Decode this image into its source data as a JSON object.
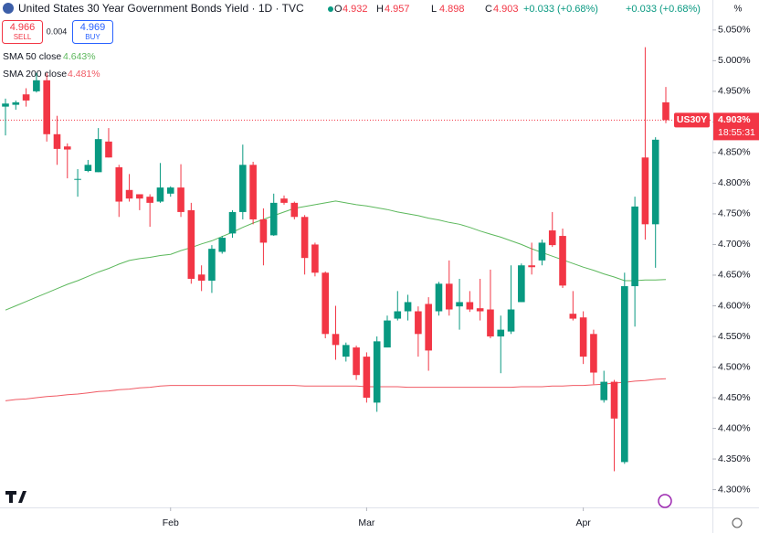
{
  "chart_data": {
    "type": "candlestick",
    "title": "United States 30 Year Government Bonds Yield · 1D · TVC",
    "ohlc_labels": [
      "O",
      "H",
      "L",
      "C"
    ],
    "ohlc_values": [
      4.932,
      4.957,
      4.898,
      4.903
    ],
    "change": "+0.033 (+0.68%)",
    "sell": {
      "label": "SELL",
      "value": 4.966
    },
    "buy": {
      "label": "BUY",
      "value": 4.969
    },
    "spread": 0.004,
    "axis_unit": "%",
    "symbol": "US30Y",
    "last_price": {
      "value": 4.903,
      "label": "4.903%"
    },
    "countdown": "18:55:31",
    "up_color": "#089981",
    "down_color": "#f23645",
    "categories": [
      null,
      null,
      null,
      null,
      null,
      null,
      null,
      null,
      null,
      null,
      null,
      null,
      null,
      null,
      null,
      null,
      "Feb",
      null,
      null,
      null,
      null,
      null,
      null,
      null,
      null,
      null,
      null,
      null,
      null,
      null,
      null,
      null,
      null,
      null,
      null,
      "Mar",
      null,
      null,
      null,
      null,
      null,
      null,
      null,
      null,
      null,
      null,
      null,
      null,
      null,
      null,
      null,
      null,
      null,
      null,
      null,
      null,
      "Apr",
      null,
      null,
      null,
      null,
      null,
      null,
      null,
      null
    ],
    "open": [
      4.925,
      4.928,
      4.945,
      4.95,
      4.968,
      4.88,
      4.86,
      4.806,
      4.82,
      4.818,
      4.868,
      4.826,
      4.789,
      4.782,
      4.778,
      4.77,
      4.783,
      4.793,
      4.756,
      4.651,
      4.641,
      4.688,
      4.718,
      4.753,
      4.83,
      4.741,
      4.715,
      4.775,
      4.768,
      4.745,
      4.7,
      4.654,
      4.554,
      4.517,
      4.532,
      4.517,
      4.442,
      4.532,
      4.579,
      4.591,
      4.591,
      4.603,
      4.591,
      4.636,
      4.599,
      4.606,
      4.596,
      4.594,
      4.55,
      4.558,
      4.606,
      4.666,
      4.674,
      4.723,
      4.714,
      4.587,
      4.581,
      4.554,
      4.446,
      4.476,
      4.345,
      4.632,
      4.842,
      4.733,
      4.932
    ],
    "high": [
      4.938,
      4.935,
      4.955,
      4.98,
      4.98,
      4.91,
      4.865,
      4.823,
      4.838,
      4.89,
      4.89,
      4.83,
      4.815,
      4.782,
      4.782,
      4.833,
      4.795,
      4.831,
      4.768,
      4.666,
      4.699,
      4.714,
      4.756,
      4.863,
      4.835,
      4.759,
      4.783,
      4.78,
      4.77,
      4.748,
      4.703,
      4.656,
      4.6,
      4.54,
      4.535,
      4.524,
      4.55,
      4.584,
      4.624,
      4.618,
      4.599,
      4.614,
      4.639,
      4.674,
      4.644,
      4.624,
      4.644,
      4.659,
      4.584,
      4.666,
      4.669,
      4.703,
      4.708,
      4.753,
      4.726,
      4.624,
      4.591,
      4.561,
      4.494,
      4.479,
      4.654,
      4.778,
      5.022,
      4.875,
      4.957
    ],
    "low": [
      4.878,
      4.92,
      4.925,
      4.948,
      4.868,
      4.83,
      4.808,
      4.778,
      4.818,
      4.818,
      4.842,
      4.745,
      4.77,
      4.756,
      4.729,
      4.768,
      4.778,
      4.745,
      4.636,
      4.624,
      4.621,
      4.685,
      4.711,
      4.741,
      4.733,
      4.666,
      4.714,
      4.765,
      4.741,
      4.651,
      4.648,
      4.547,
      4.512,
      4.509,
      4.479,
      4.442,
      4.427,
      4.532,
      4.576,
      4.576,
      4.517,
      4.494,
      4.584,
      4.584,
      4.561,
      4.59,
      4.576,
      4.547,
      4.49,
      4.554,
      4.606,
      4.651,
      4.666,
      4.696,
      4.629,
      4.576,
      4.505,
      4.472,
      4.442,
      4.33,
      4.342,
      4.566,
      4.708,
      4.662,
      4.898
    ],
    "close": [
      4.93,
      4.932,
      4.935,
      4.968,
      4.88,
      4.856,
      4.855,
      4.807,
      4.83,
      4.872,
      4.842,
      4.77,
      4.775,
      4.775,
      4.768,
      4.793,
      4.793,
      4.753,
      4.644,
      4.641,
      4.693,
      4.711,
      4.753,
      4.83,
      4.741,
      4.703,
      4.768,
      4.768,
      4.745,
      4.678,
      4.654,
      4.554,
      4.536,
      4.536,
      4.487,
      4.45,
      4.542,
      4.576,
      4.591,
      4.606,
      4.554,
      4.527,
      4.636,
      4.594,
      4.606,
      4.594,
      4.591,
      4.55,
      4.561,
      4.594,
      4.666,
      4.663,
      4.703,
      4.699,
      4.633,
      4.579,
      4.517,
      4.491,
      4.476,
      4.416,
      4.632,
      4.762,
      4.733,
      4.871,
      4.903
    ],
    "series": [
      {
        "name": "SMA 50 close",
        "legend_value": {
          "value": 4.643,
          "label": "4.643%"
        },
        "color": "#5cb85c",
        "values": [
          4.593,
          4.6,
          4.607,
          4.614,
          4.621,
          4.628,
          4.635,
          4.641,
          4.648,
          4.655,
          4.661,
          4.668,
          4.674,
          4.677,
          4.679,
          4.682,
          4.684,
          4.69,
          4.695,
          4.701,
          4.706,
          4.713,
          4.72,
          4.728,
          4.735,
          4.741,
          4.747,
          4.753,
          4.759,
          4.762,
          4.765,
          4.768,
          4.771,
          4.768,
          4.765,
          4.763,
          4.76,
          4.757,
          4.753,
          4.75,
          4.747,
          4.743,
          4.74,
          4.736,
          4.733,
          4.728,
          4.722,
          4.717,
          4.712,
          4.706,
          4.7,
          4.693,
          4.687,
          4.681,
          4.675,
          4.669,
          4.663,
          4.658,
          4.652,
          4.647,
          4.641,
          4.641,
          4.642,
          4.642,
          4.643
        ]
      },
      {
        "name": "SMA 200 close",
        "legend_value": {
          "value": 4.481,
          "label": "4.481%"
        },
        "color": "#f05a64",
        "values": [
          4.445,
          4.447,
          4.448,
          4.45,
          4.452,
          4.453,
          4.455,
          4.456,
          4.458,
          4.46,
          4.461,
          4.463,
          4.464,
          4.466,
          4.467,
          4.469,
          4.47,
          4.47,
          4.47,
          4.47,
          4.47,
          4.47,
          4.47,
          4.47,
          4.47,
          4.47,
          4.47,
          4.47,
          4.47,
          4.469,
          4.469,
          4.469,
          4.469,
          4.469,
          4.469,
          4.468,
          4.468,
          4.468,
          4.468,
          4.467,
          4.467,
          4.467,
          4.467,
          4.467,
          4.467,
          4.467,
          4.467,
          4.467,
          4.467,
          4.467,
          4.468,
          4.468,
          4.468,
          4.469,
          4.469,
          4.47,
          4.47,
          4.471,
          4.472,
          4.474,
          4.475,
          4.477,
          4.478,
          4.48,
          4.481
        ]
      }
    ],
    "ylim": [
      4.271,
      5.099
    ],
    "yticks": [
      {
        "value": 5.05,
        "label": "5.050%"
      },
      {
        "value": 5.0,
        "label": "5.000%"
      },
      {
        "value": 4.95,
        "label": "4.950%"
      },
      {
        "value": 4.9,
        "label": "4.900%"
      },
      {
        "value": 4.85,
        "label": "4.850%"
      },
      {
        "value": 4.8,
        "label": "4.800%"
      },
      {
        "value": 4.75,
        "label": "4.750%"
      },
      {
        "value": 4.7,
        "label": "4.700%"
      },
      {
        "value": 4.65,
        "label": "4.650%"
      },
      {
        "value": 4.6,
        "label": "4.600%"
      },
      {
        "value": 4.55,
        "label": "4.550%"
      },
      {
        "value": 4.5,
        "label": "4.500%"
      },
      {
        "value": 4.45,
        "label": "4.450%"
      },
      {
        "value": 4.4,
        "label": "4.400%"
      },
      {
        "value": 4.35,
        "label": "4.350%"
      },
      {
        "value": 4.3,
        "label": "4.300%"
      }
    ],
    "grid": false
  }
}
